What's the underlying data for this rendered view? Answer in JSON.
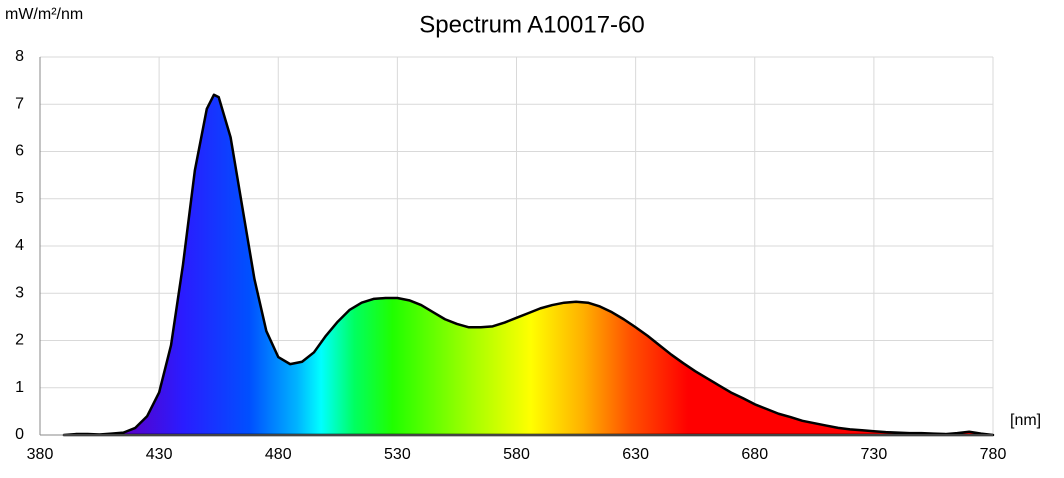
{
  "chart_data": {
    "type": "area",
    "title": "Spectrum A10017-60",
    "y_label": "mW/m²/nm",
    "x_label": "[nm]",
    "x": [
      390,
      395,
      400,
      405,
      410,
      415,
      420,
      425,
      430,
      435,
      440,
      445,
      450,
      453,
      455,
      460,
      465,
      470,
      475,
      480,
      485,
      490,
      495,
      500,
      505,
      510,
      515,
      520,
      525,
      530,
      535,
      540,
      545,
      550,
      555,
      560,
      565,
      570,
      575,
      580,
      585,
      590,
      595,
      600,
      605,
      610,
      615,
      620,
      625,
      630,
      635,
      640,
      645,
      650,
      655,
      660,
      665,
      670,
      675,
      680,
      685,
      690,
      695,
      700,
      705,
      710,
      715,
      720,
      725,
      730,
      735,
      740,
      745,
      750,
      755,
      760,
      765,
      770,
      775,
      780
    ],
    "values": [
      0,
      0.02,
      0.02,
      0.01,
      0.03,
      0.05,
      0.15,
      0.4,
      0.9,
      1.9,
      3.6,
      5.6,
      6.9,
      7.2,
      7.15,
      6.3,
      4.8,
      3.3,
      2.2,
      1.65,
      1.5,
      1.55,
      1.75,
      2.1,
      2.4,
      2.65,
      2.8,
      2.88,
      2.9,
      2.9,
      2.85,
      2.75,
      2.6,
      2.45,
      2.35,
      2.28,
      2.28,
      2.3,
      2.38,
      2.48,
      2.58,
      2.68,
      2.75,
      2.8,
      2.82,
      2.8,
      2.72,
      2.6,
      2.45,
      2.28,
      2.1,
      1.9,
      1.7,
      1.52,
      1.35,
      1.2,
      1.05,
      0.9,
      0.78,
      0.65,
      0.55,
      0.45,
      0.38,
      0.3,
      0.25,
      0.2,
      0.15,
      0.12,
      0.1,
      0.08,
      0.06,
      0.05,
      0.04,
      0.04,
      0.03,
      0.02,
      0.04,
      0.07,
      0.03,
      0
    ],
    "line_color": "#000000",
    "xlim": [
      380,
      780
    ],
    "xticks": [
      380,
      430,
      480,
      530,
      580,
      630,
      680,
      730,
      780
    ],
    "ylim": [
      0,
      8
    ],
    "yticks": [
      0,
      1,
      2,
      3,
      4,
      5,
      6,
      7,
      8
    ],
    "grid": true
  }
}
